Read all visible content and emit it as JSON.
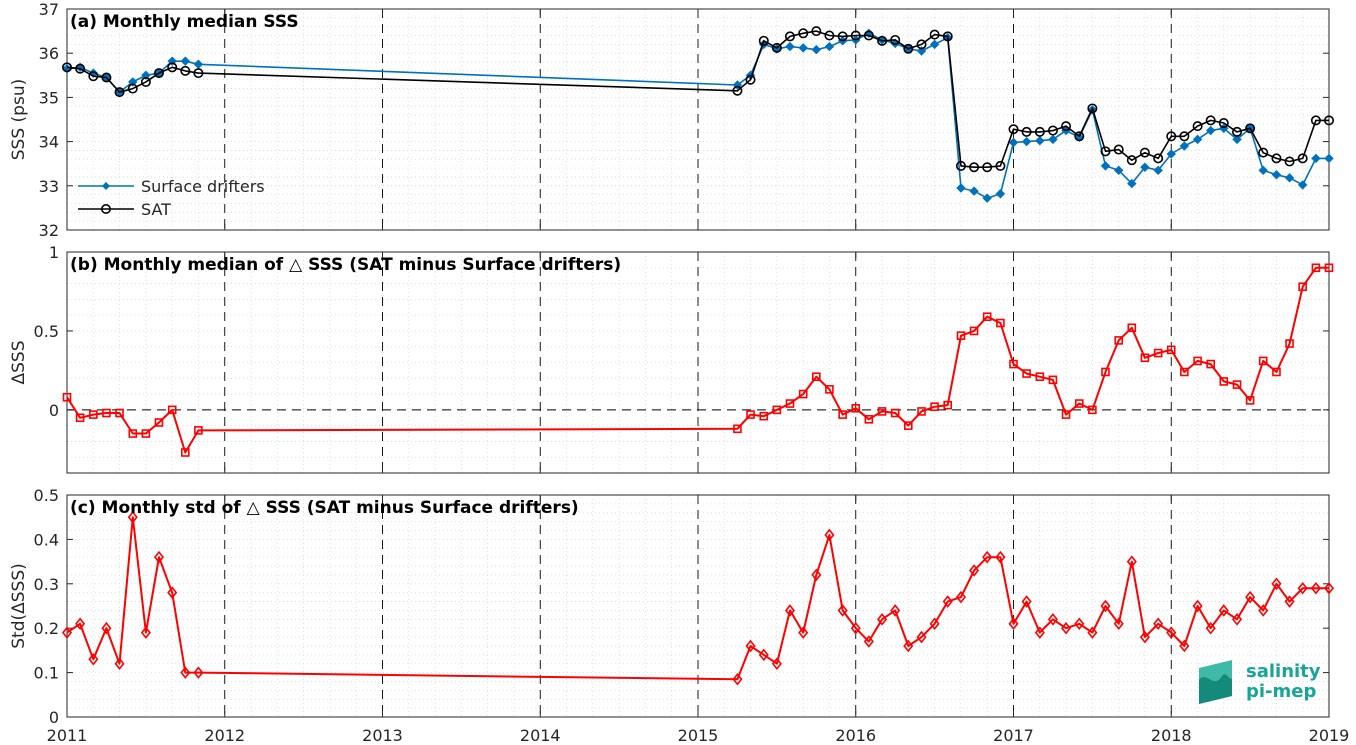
{
  "chart_data": [
    {
      "type": "line",
      "title": "(a) Monthly median SSS",
      "ylabel": "SSS (psu)",
      "xlabel": "",
      "xlim": [
        2011,
        2019
      ],
      "ylim": [
        32,
        37
      ],
      "yticks": [
        "32",
        "33",
        "34",
        "35",
        "36",
        "37"
      ],
      "xticks": [
        "2011",
        "2012",
        "2013",
        "2014",
        "2015",
        "2016",
        "2017",
        "2018",
        "2019"
      ],
      "grid": true,
      "legend_position": "bottom-left",
      "series": [
        {
          "name": "Surface drifters",
          "color": "#0072bd",
          "marker": "filled-diamond",
          "x": [
            2011.0,
            2011.083,
            2011.167,
            2011.25,
            2011.333,
            2011.417,
            2011.5,
            2011.583,
            2011.667,
            2011.75,
            2011.833,
            2015.25,
            2015.333,
            2015.417,
            2015.5,
            2015.583,
            2015.667,
            2015.75,
            2015.833,
            2015.917,
            2016.0,
            2016.083,
            2016.167,
            2016.25,
            2016.333,
            2016.417,
            2016.5,
            2016.583,
            2016.667,
            2016.75,
            2016.833,
            2016.917,
            2017.0,
            2017.083,
            2017.167,
            2017.25,
            2017.333,
            2017.417,
            2017.5,
            2017.583,
            2017.667,
            2017.75,
            2017.833,
            2017.917,
            2018.0,
            2018.083,
            2018.167,
            2018.25,
            2018.333,
            2018.417,
            2018.5,
            2018.583,
            2018.667,
            2018.75,
            2018.833,
            2018.917,
            2019.0
          ],
          "y": [
            35.65,
            35.68,
            35.55,
            35.45,
            35.12,
            35.35,
            35.5,
            35.55,
            35.82,
            35.82,
            35.75,
            35.28,
            35.5,
            36.2,
            36.1,
            36.15,
            36.12,
            36.08,
            36.15,
            36.28,
            36.3,
            36.45,
            36.3,
            36.22,
            36.1,
            36.05,
            36.2,
            36.35,
            32.95,
            32.88,
            32.72,
            32.82,
            33.98,
            34.0,
            34.02,
            34.05,
            34.25,
            34.1,
            34.72,
            33.45,
            33.35,
            33.05,
            33.42,
            33.35,
            33.72,
            33.9,
            34.05,
            34.25,
            34.3,
            34.05,
            34.3,
            33.35,
            33.25,
            33.18,
            33.02,
            33.62,
            33.62
          ]
        },
        {
          "name": "SAT",
          "color": "#000000",
          "marker": "open-circle",
          "x": [
            2011.0,
            2011.083,
            2011.167,
            2011.25,
            2011.333,
            2011.417,
            2011.5,
            2011.583,
            2011.667,
            2011.75,
            2011.833,
            2015.25,
            2015.333,
            2015.417,
            2015.5,
            2015.583,
            2015.667,
            2015.75,
            2015.833,
            2015.917,
            2016.0,
            2016.083,
            2016.167,
            2016.25,
            2016.333,
            2016.417,
            2016.5,
            2016.583,
            2016.667,
            2016.75,
            2016.833,
            2016.917,
            2017.0,
            2017.083,
            2017.167,
            2017.25,
            2017.333,
            2017.417,
            2017.5,
            2017.583,
            2017.667,
            2017.75,
            2017.833,
            2017.917,
            2018.0,
            2018.083,
            2018.167,
            2018.25,
            2018.333,
            2018.417,
            2018.5,
            2018.583,
            2018.667,
            2018.75,
            2018.833,
            2018.917,
            2019.0
          ],
          "y": [
            35.68,
            35.65,
            35.48,
            35.45,
            35.12,
            35.2,
            35.35,
            35.55,
            35.68,
            35.6,
            35.55,
            35.15,
            35.4,
            36.28,
            36.12,
            36.38,
            36.45,
            36.5,
            36.4,
            36.38,
            36.4,
            36.4,
            36.28,
            36.3,
            36.1,
            36.2,
            36.42,
            36.38,
            33.45,
            33.42,
            33.42,
            33.45,
            34.28,
            34.22,
            34.22,
            34.25,
            34.35,
            34.12,
            34.75,
            33.78,
            33.82,
            33.58,
            33.75,
            33.62,
            34.12,
            34.12,
            34.35,
            34.48,
            34.42,
            34.22,
            34.3,
            33.75,
            33.62,
            33.55,
            33.62,
            34.48,
            34.48
          ]
        }
      ]
    },
    {
      "type": "line",
      "title": "(b) Monthly median of △ SSS (SAT minus Surface drifters)",
      "ylabel": "ΔSSS",
      "xlabel": "",
      "xlim": [
        2011,
        2019
      ],
      "ylim": [
        -0.4,
        1
      ],
      "yticks": [
        "0",
        "0.5",
        "1"
      ],
      "xticks": [
        "2011",
        "2012",
        "2013",
        "2014",
        "2015",
        "2016",
        "2017",
        "2018",
        "2019"
      ],
      "grid": true,
      "zero_line": true,
      "series": [
        {
          "color": "#ff0000",
          "marker": "open-square",
          "x": [
            2011.0,
            2011.083,
            2011.167,
            2011.25,
            2011.333,
            2011.417,
            2011.5,
            2011.583,
            2011.667,
            2011.75,
            2011.833,
            2015.25,
            2015.333,
            2015.417,
            2015.5,
            2015.583,
            2015.667,
            2015.75,
            2015.833,
            2015.917,
            2016.0,
            2016.083,
            2016.167,
            2016.25,
            2016.333,
            2016.417,
            2016.5,
            2016.583,
            2016.667,
            2016.75,
            2016.833,
            2016.917,
            2017.0,
            2017.083,
            2017.167,
            2017.25,
            2017.333,
            2017.417,
            2017.5,
            2017.583,
            2017.667,
            2017.75,
            2017.833,
            2017.917,
            2018.0,
            2018.083,
            2018.167,
            2018.25,
            2018.333,
            2018.417,
            2018.5,
            2018.583,
            2018.667,
            2018.75,
            2018.833,
            2018.917,
            2019.0
          ],
          "y": [
            0.08,
            -0.05,
            -0.03,
            -0.02,
            -0.02,
            -0.15,
            -0.15,
            -0.08,
            0.0,
            -0.27,
            -0.13,
            -0.12,
            -0.03,
            -0.04,
            0.0,
            0.04,
            0.1,
            0.21,
            0.13,
            -0.03,
            0.01,
            -0.06,
            -0.01,
            -0.02,
            -0.1,
            -0.01,
            0.02,
            0.03,
            0.47,
            0.5,
            0.59,
            0.55,
            0.29,
            0.23,
            0.21,
            0.19,
            -0.03,
            0.04,
            0.0,
            0.24,
            0.44,
            0.52,
            0.33,
            0.36,
            0.38,
            0.24,
            0.31,
            0.29,
            0.18,
            0.16,
            0.06,
            0.31,
            0.24,
            0.42,
            0.78,
            0.9,
            0.9
          ]
        }
      ]
    },
    {
      "type": "line",
      "title": "(c) Monthly std of △ SSS (SAT minus Surface drifters)",
      "ylabel": "Std(ΔSSS)",
      "xlabel": "",
      "xlim": [
        2011,
        2019
      ],
      "ylim": [
        0,
        0.5
      ],
      "yticks": [
        "0",
        "0.1",
        "0.2",
        "0.3",
        "0.4",
        "0.5"
      ],
      "xticks": [
        "2011",
        "2012",
        "2013",
        "2014",
        "2015",
        "2016",
        "2017",
        "2018",
        "2019"
      ],
      "grid": true,
      "series": [
        {
          "color": "#ff0000",
          "marker": "open-diamond",
          "x": [
            2011.0,
            2011.083,
            2011.167,
            2011.25,
            2011.333,
            2011.417,
            2011.5,
            2011.583,
            2011.667,
            2011.75,
            2011.833,
            2015.25,
            2015.333,
            2015.417,
            2015.5,
            2015.583,
            2015.667,
            2015.75,
            2015.833,
            2015.917,
            2016.0,
            2016.083,
            2016.167,
            2016.25,
            2016.333,
            2016.417,
            2016.5,
            2016.583,
            2016.667,
            2016.75,
            2016.833,
            2016.917,
            2017.0,
            2017.083,
            2017.167,
            2017.25,
            2017.333,
            2017.417,
            2017.5,
            2017.583,
            2017.667,
            2017.75,
            2017.833,
            2017.917,
            2018.0,
            2018.083,
            2018.167,
            2018.25,
            2018.333,
            2018.417,
            2018.5,
            2018.583,
            2018.667,
            2018.75,
            2018.833,
            2018.917,
            2019.0
          ],
          "y": [
            0.19,
            0.21,
            0.13,
            0.2,
            0.12,
            0.45,
            0.19,
            0.36,
            0.28,
            0.1,
            0.1,
            0.085,
            0.16,
            0.14,
            0.12,
            0.24,
            0.19,
            0.32,
            0.41,
            0.24,
            0.2,
            0.17,
            0.22,
            0.24,
            0.16,
            0.18,
            0.21,
            0.26,
            0.27,
            0.33,
            0.36,
            0.36,
            0.21,
            0.26,
            0.19,
            0.22,
            0.2,
            0.21,
            0.19,
            0.25,
            0.21,
            0.35,
            0.18,
            0.21,
            0.19,
            0.16,
            0.25,
            0.2,
            0.24,
            0.22,
            0.27,
            0.24,
            0.3,
            0.26,
            0.29,
            0.29,
            0.29
          ]
        }
      ]
    }
  ],
  "logo": {
    "line1": "salinity",
    "line2": "pi-mep",
    "color": "#16a596"
  }
}
